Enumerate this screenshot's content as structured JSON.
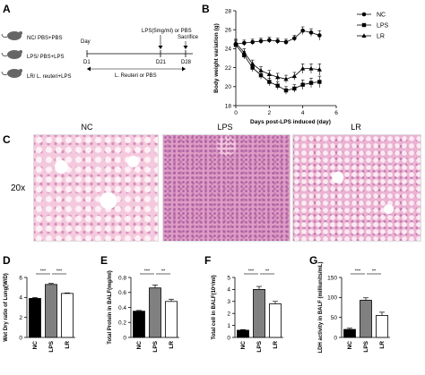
{
  "panels": {
    "A": {
      "letter": "A",
      "groups": [
        "NC/ PBS+PBS",
        "LPS/ PBS+LPS",
        "LR/ L. reuteri+LPS"
      ],
      "timeline": {
        "day_label": "Day",
        "points": [
          "D1",
          "D21",
          "D28"
        ],
        "lps_label": "LPS(5mg/ml) or PBS",
        "sacrifice_label": "Sacrifice",
        "treatment_label": "L. Reuteri or PBS"
      }
    },
    "B": {
      "letter": "B"
    },
    "C": {
      "letter": "C",
      "magnification": "20x",
      "groups": [
        "NC",
        "LPS",
        "LR"
      ]
    },
    "D": {
      "letter": "D"
    },
    "E": {
      "letter": "E"
    },
    "F": {
      "letter": "F"
    },
    "G": {
      "letter": "G"
    }
  },
  "chart_data": [
    {
      "id": "B",
      "type": "line",
      "xlabel": "Days post-LPS induced (day)",
      "ylabel": "Body weight variation (g)",
      "xlim": [
        0,
        6
      ],
      "ylim": [
        18,
        28
      ],
      "xticks": [
        0,
        2,
        4,
        6
      ],
      "yticks": [
        18,
        20,
        22,
        24,
        26,
        28
      ],
      "legend_position": "top-right",
      "series": [
        {
          "name": "NC",
          "marker": "circle",
          "x": [
            0,
            0.5,
            1,
            1.5,
            2,
            2.5,
            3,
            3.5,
            4,
            4.5,
            5
          ],
          "y": [
            24.5,
            24.6,
            24.7,
            24.8,
            24.9,
            24.8,
            24.7,
            25.1,
            25.9,
            25.7,
            25.4
          ],
          "err": [
            0.4,
            0.3,
            0.3,
            0.3,
            0.3,
            0.3,
            0.3,
            0.3,
            0.4,
            0.4,
            0.5
          ]
        },
        {
          "name": "LPS",
          "marker": "square",
          "x": [
            0,
            0.5,
            1,
            1.5,
            2,
            2.5,
            3,
            3.5,
            4,
            4.5,
            5
          ],
          "y": [
            24.4,
            23.3,
            22.0,
            21.2,
            20.5,
            20.1,
            19.6,
            19.8,
            20.2,
            20.4,
            20.5
          ],
          "err": [
            0.4,
            0.4,
            0.4,
            0.4,
            0.4,
            0.4,
            0.4,
            0.4,
            0.5,
            0.5,
            0.6
          ]
        },
        {
          "name": "LR",
          "marker": "triangle",
          "x": [
            0,
            0.5,
            1,
            1.5,
            2,
            2.5,
            3,
            3.5,
            4,
            4.5,
            5
          ],
          "y": [
            24.6,
            23.6,
            22.4,
            21.7,
            21.3,
            21.0,
            20.8,
            21.1,
            21.9,
            21.9,
            21.8
          ],
          "err": [
            0.4,
            0.4,
            0.4,
            0.4,
            0.4,
            0.4,
            0.4,
            0.4,
            0.5,
            0.5,
            0.6
          ]
        }
      ]
    },
    {
      "id": "D",
      "type": "bar",
      "categories": [
        "NC",
        "LPS",
        "LR"
      ],
      "values": [
        3.9,
        5.3,
        4.4
      ],
      "errors": [
        0.1,
        0.1,
        0.05
      ],
      "colors": [
        "#000000",
        "#808080",
        "#ffffff"
      ],
      "ylabel": "Wet Dry ratio of Lung(W/D)",
      "ylim": [
        0,
        6
      ],
      "yticks": [
        0,
        2,
        4,
        6
      ],
      "significance": [
        "***",
        "***"
      ]
    },
    {
      "id": "E",
      "type": "bar",
      "categories": [
        "NC",
        "LPS",
        "LR"
      ],
      "values": [
        0.35,
        0.66,
        0.48
      ],
      "errors": [
        0.01,
        0.04,
        0.03
      ],
      "colors": [
        "#000000",
        "#808080",
        "#ffffff"
      ],
      "ylabel": "Total Protein in BALF(mg/ml)",
      "ylim": [
        0,
        0.8
      ],
      "yticks": [
        0.0,
        0.2,
        0.4,
        0.6,
        0.8
      ],
      "significance": [
        "***",
        "**"
      ]
    },
    {
      "id": "F",
      "type": "bar",
      "categories": [
        "NC",
        "LPS",
        "LR"
      ],
      "values": [
        0.6,
        4.0,
        2.8
      ],
      "errors": [
        0.05,
        0.25,
        0.2
      ],
      "colors": [
        "#000000",
        "#808080",
        "#ffffff"
      ],
      "ylabel": "Total cell in BALF(10⁶/ml)",
      "ylim": [
        0,
        5
      ],
      "yticks": [
        0,
        1,
        2,
        3,
        4,
        5
      ],
      "significance": [
        "***",
        "**"
      ]
    },
    {
      "id": "G",
      "type": "bar",
      "categories": [
        "NC",
        "LPS",
        "LR"
      ],
      "values": [
        20,
        93,
        55
      ],
      "errors": [
        3,
        6,
        8
      ],
      "colors": [
        "#000000",
        "#808080",
        "#ffffff"
      ],
      "ylabel": "LDH activity in BALF (milliunits/mL)",
      "ylim": [
        0,
        150
      ],
      "yticks": [
        0,
        50,
        100,
        150
      ],
      "significance": [
        "***",
        "**"
      ]
    }
  ]
}
